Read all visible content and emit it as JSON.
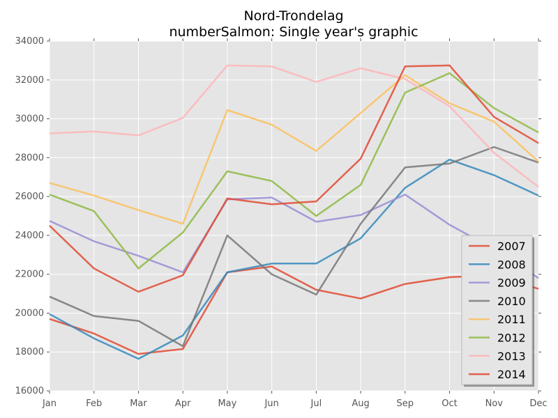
{
  "title_line1": "Nord-Trondelag",
  "title_line2": "numberSalmon: Single year's graphic",
  "chart_data": {
    "type": "line",
    "title": "Nord-Trondelag numberSalmon: Single year's graphic",
    "xlabel": "",
    "ylabel": "",
    "categories": [
      "Jan",
      "Feb",
      "Mar",
      "Apr",
      "May",
      "Jun",
      "Jul",
      "Aug",
      "Sep",
      "Oct",
      "Nov",
      "Dec"
    ],
    "ylim": [
      16000,
      34000
    ],
    "yticks": [
      "16000",
      "18000",
      "20000",
      "22000",
      "24000",
      "26000",
      "28000",
      "30000",
      "32000",
      "34000"
    ],
    "grid": true,
    "legend_position": "lower-right",
    "series": [
      {
        "name": "2007",
        "color": "#e24a33",
        "values": [
          19700,
          18950,
          17900,
          18150,
          22100,
          22400,
          21200,
          20750,
          21500,
          21850,
          21950,
          21250
        ]
      },
      {
        "name": "2008",
        "color": "#348abd",
        "values": [
          19950,
          18700,
          17650,
          18850,
          22100,
          22550,
          22550,
          23850,
          26450,
          27900,
          27100,
          26050
        ]
      },
      {
        "name": "2009",
        "color": "#988ed5",
        "values": [
          24750,
          23700,
          22950,
          22100,
          25850,
          25950,
          24700,
          25050,
          26100,
          24550,
          23300,
          21800
        ]
      },
      {
        "name": "2010",
        "color": "#777777",
        "values": [
          20850,
          19850,
          19600,
          18300,
          24000,
          22000,
          20950,
          24600,
          27500,
          27700,
          28550,
          27750
        ]
      },
      {
        "name": "2011",
        "color": "#fbc15e",
        "values": [
          26700,
          26050,
          25300,
          24600,
          30450,
          29700,
          28350,
          30300,
          32250,
          30800,
          29850,
          27800
        ]
      },
      {
        "name": "2012",
        "color": "#8eba42",
        "values": [
          26100,
          25250,
          22300,
          24150,
          27300,
          26800,
          25000,
          26600,
          31350,
          32350,
          30550,
          29300
        ]
      },
      {
        "name": "2013",
        "color": "#ffb5b8",
        "values": [
          29250,
          29350,
          29150,
          30050,
          32750,
          32700,
          31900,
          32600,
          32050,
          30650,
          28250,
          26500
        ]
      },
      {
        "name": "2014",
        "color": "#e24a33",
        "values": [
          24500,
          22300,
          21100,
          21950,
          25900,
          25600,
          25750,
          27950,
          32700,
          32750,
          30100,
          28750
        ]
      }
    ]
  }
}
